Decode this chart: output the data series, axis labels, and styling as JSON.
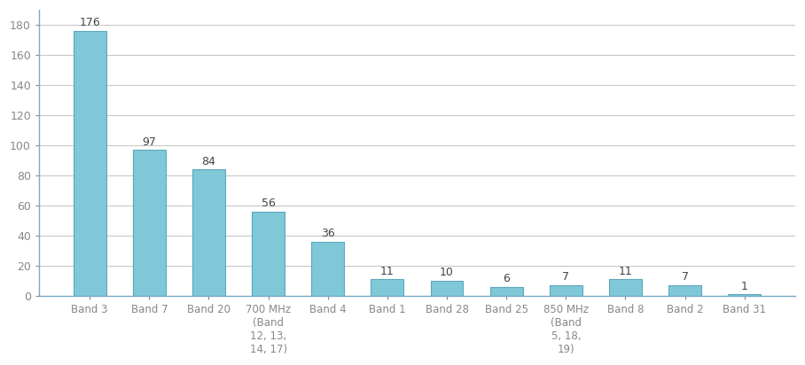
{
  "categories": [
    "Band 3",
    "Band 7",
    "Band 20",
    "700 MHz\n(Band\n12, 13,\n14, 17)",
    "Band 4",
    "Band 1",
    "Band 28",
    "Band 25",
    "850 MHz\n(Band\n5, 18,\n19)",
    "Band 8",
    "Band 2",
    "Band 31"
  ],
  "values": [
    176,
    97,
    84,
    56,
    36,
    11,
    10,
    6,
    7,
    11,
    7,
    1
  ],
  "bar_color": "#7EC8D8",
  "bar_edge_color": "#5BA8BC",
  "ylim": [
    0,
    190
  ],
  "yticks": [
    0,
    20,
    40,
    60,
    80,
    100,
    120,
    140,
    160,
    180
  ],
  "background_color": "#ffffff",
  "grid_color": "#c8c8c8",
  "label_fontsize": 8.5,
  "tick_fontsize": 9,
  "value_fontsize": 9,
  "left_spine_color": "#7aaac8",
  "bottom_spine_color": "#7aaac8"
}
